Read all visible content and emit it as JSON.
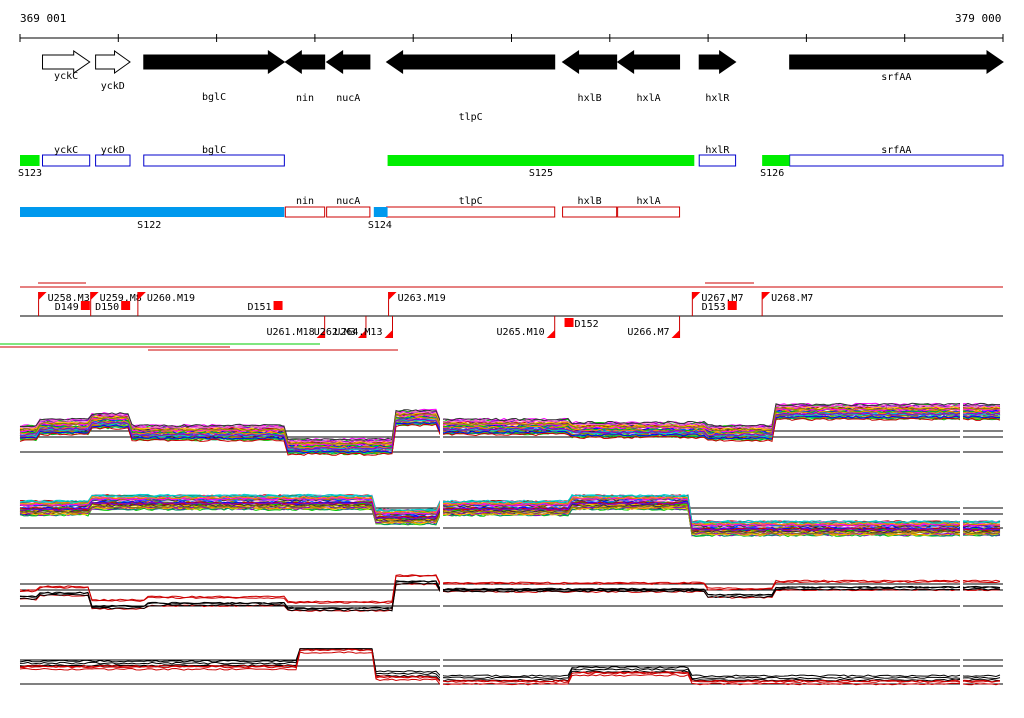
{
  "header": {
    "coord_start": "369 001",
    "coord_end": "379 000"
  },
  "colors": {
    "gene": "#000000",
    "track_blue": "#0000cc",
    "track_red": "#cc0000",
    "segment_green": "#00ee00",
    "segment_blue": "#0099ee",
    "marker": "#ff0000"
  },
  "genes": [
    {
      "name": "yckC",
      "strand": "+",
      "style": "outline",
      "start": 369230,
      "end": 369710
    },
    {
      "name": "yckD",
      "strand": "+",
      "style": "outline",
      "start": 369770,
      "end": 370120
    },
    {
      "name": "bglC",
      "strand": "+",
      "style": "solid",
      "start": 370260,
      "end": 371690
    },
    {
      "name": "nin",
      "strand": "-",
      "style": "solid",
      "start": 371700,
      "end": 372100
    },
    {
      "name": "nucA",
      "strand": "-",
      "style": "solid",
      "start": 372120,
      "end": 372560
    },
    {
      "name": "tlpC",
      "strand": "-",
      "style": "solid",
      "start": 372730,
      "end": 374440
    },
    {
      "name": "hxlB",
      "strand": "-",
      "style": "solid",
      "start": 374520,
      "end": 375070
    },
    {
      "name": "hxlA",
      "strand": "-",
      "style": "solid",
      "start": 375080,
      "end": 375710
    },
    {
      "name": "hxlR",
      "strand": "+",
      "style": "solid",
      "start": 375910,
      "end": 376280
    },
    {
      "name": "srfAA",
      "strand": "+",
      "style": "solid",
      "start": 376830,
      "end": 379000
    }
  ],
  "segments_plus": [
    {
      "name": "S123",
      "start": 369001,
      "end": 369200
    },
    {
      "name": "S125",
      "start": 372740,
      "end": 375860
    },
    {
      "name": "S126",
      "start": 376550,
      "end": 376830
    }
  ],
  "segments_minus": [
    {
      "name": "S122",
      "start": 369001,
      "end": 371690
    },
    {
      "name": "S124",
      "start": 372600,
      "end": 372740
    }
  ],
  "genes_plus_track": [
    "yckC",
    "yckD",
    "bglC",
    "hxlR",
    "srfAA"
  ],
  "genes_minus_track": [
    "nin",
    "nucA",
    "tlpC",
    "hxlB",
    "hxlA"
  ],
  "features_upper": [
    {
      "name": "U258.M3",
      "pos": 369190
    },
    {
      "name": "U259.M8",
      "pos": 369720
    },
    {
      "name": "U260.M19",
      "pos": 370200
    },
    {
      "name": "U263.M19",
      "pos": 372750
    },
    {
      "name": "U267.M7",
      "pos": 375840
    },
    {
      "name": "U268.M7",
      "pos": 376550
    }
  ],
  "features_lower": [
    {
      "name": "U261.M18",
      "pos": 372100
    },
    {
      "name": "U262.M3",
      "pos": 372520
    },
    {
      "name": "U264.M13",
      "pos": 372790
    },
    {
      "name": "U265.M10",
      "pos": 374440
    },
    {
      "name": "U266.M7",
      "pos": 375710
    }
  ],
  "d_markers_upper": [
    {
      "name": "D149",
      "pos": 369620
    },
    {
      "name": "D150",
      "pos": 370030
    },
    {
      "name": "D151",
      "pos": 371580
    },
    {
      "name": "D153",
      "pos": 376200
    }
  ],
  "d_markers_lower": [
    {
      "name": "D152",
      "pos": 374540
    }
  ]
}
